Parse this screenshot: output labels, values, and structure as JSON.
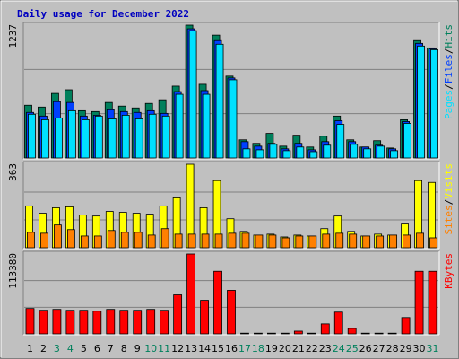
{
  "chart_data": [
    {
      "type": "bar",
      "title": "Daily usage for December 2022",
      "categories": [
        "1",
        "2",
        "3",
        "4",
        "5",
        "6",
        "7",
        "8",
        "9",
        "10",
        "11",
        "12",
        "13",
        "14",
        "15",
        "16",
        "17",
        "18",
        "19",
        "20",
        "21",
        "22",
        "23",
        "24",
        "25",
        "26",
        "27",
        "28",
        "29",
        "30",
        "31"
      ],
      "category_colors": [
        "#000000",
        "#000000",
        "#00805c",
        "#00805c",
        "#000000",
        "#000000",
        "#000000",
        "#000000",
        "#000000",
        "#00805c",
        "#00805c",
        "#000000",
        "#000000",
        "#000000",
        "#000000",
        "#000000",
        "#00805c",
        "#00805c",
        "#000000",
        "#000000",
        "#000000",
        "#000000",
        "#000000",
        "#00805c",
        "#00805c",
        "#000000",
        "#000000",
        "#000000",
        "#000000",
        "#000000",
        "#00805c"
      ],
      "legend_separator": "/",
      "series": [
        {
          "name": "Hits",
          "color": "#00805c",
          "values": [
            491,
            474,
            601,
            635,
            440,
            432,
            517,
            483,
            466,
            508,
            542,
            669,
            1237,
            686,
            1144,
            762,
            169,
            136,
            229,
            110,
            212,
            102,
            203,
            390,
            169,
            102,
            161,
            93,
            356,
            1093,
            1025
          ]
        },
        {
          "name": "Files",
          "color": "#0040ff",
          "values": [
            424,
            390,
            525,
            517,
            390,
            398,
            449,
            432,
            424,
            440,
            415,
            618,
            1203,
            627,
            1093,
            745,
            152,
            110,
            136,
            85,
            136,
            76,
            152,
            347,
            152,
            102,
            119,
            85,
            339,
            1067,
            1016
          ]
        },
        {
          "name": "Pages",
          "color": "#00e0ff",
          "values": [
            407,
            356,
            373,
            440,
            356,
            390,
            364,
            398,
            364,
            407,
            390,
            593,
            1186,
            593,
            1059,
            728,
            85,
            76,
            127,
            68,
            102,
            59,
            119,
            313,
            127,
            85,
            110,
            68,
            322,
            1042,
            1008
          ]
        }
      ],
      "ylim": [
        0,
        1237
      ],
      "yticks": [
        1237
      ],
      "grid_divisions": 3
    },
    {
      "type": "bar",
      "series": [
        {
          "name": "Visits",
          "color": "#ffff00",
          "values": [
            182,
            150,
            174,
            178,
            142,
            138,
            158,
            154,
            150,
            146,
            182,
            217,
            363,
            174,
            292,
            126,
            71,
            55,
            59,
            47,
            55,
            51,
            83,
            138,
            71,
            51,
            59,
            55,
            103,
            292,
            284
          ]
        },
        {
          "name": "Sites",
          "color": "#ff8000",
          "values": [
            67,
            63,
            99,
            79,
            51,
            51,
            75,
            67,
            67,
            55,
            83,
            59,
            59,
            59,
            59,
            63,
            63,
            55,
            55,
            43,
            51,
            51,
            59,
            63,
            59,
            51,
            51,
            55,
            55,
            63,
            43
          ]
        }
      ],
      "ylim": [
        0,
        363
      ],
      "yticks": [
        363
      ],
      "grid_divisions": 3
    },
    {
      "type": "bar",
      "series": [
        {
          "name": "KBytes",
          "color": "#ff0000",
          "values": [
            36070,
            33490,
            34780,
            33490,
            33490,
            32200,
            34780,
            33490,
            33490,
            34780,
            33490,
            55390,
            113380,
            47660,
            88880,
            61830,
            1000,
            1000,
            1000,
            1000,
            3860,
            1000,
            14170,
            30910,
            7730,
            1000,
            1000,
            1000,
            23190,
            88880,
            88880
          ]
        }
      ],
      "ylim": [
        0,
        113380
      ],
      "yticks": [
        113380
      ],
      "grid_divisions": 3
    }
  ]
}
